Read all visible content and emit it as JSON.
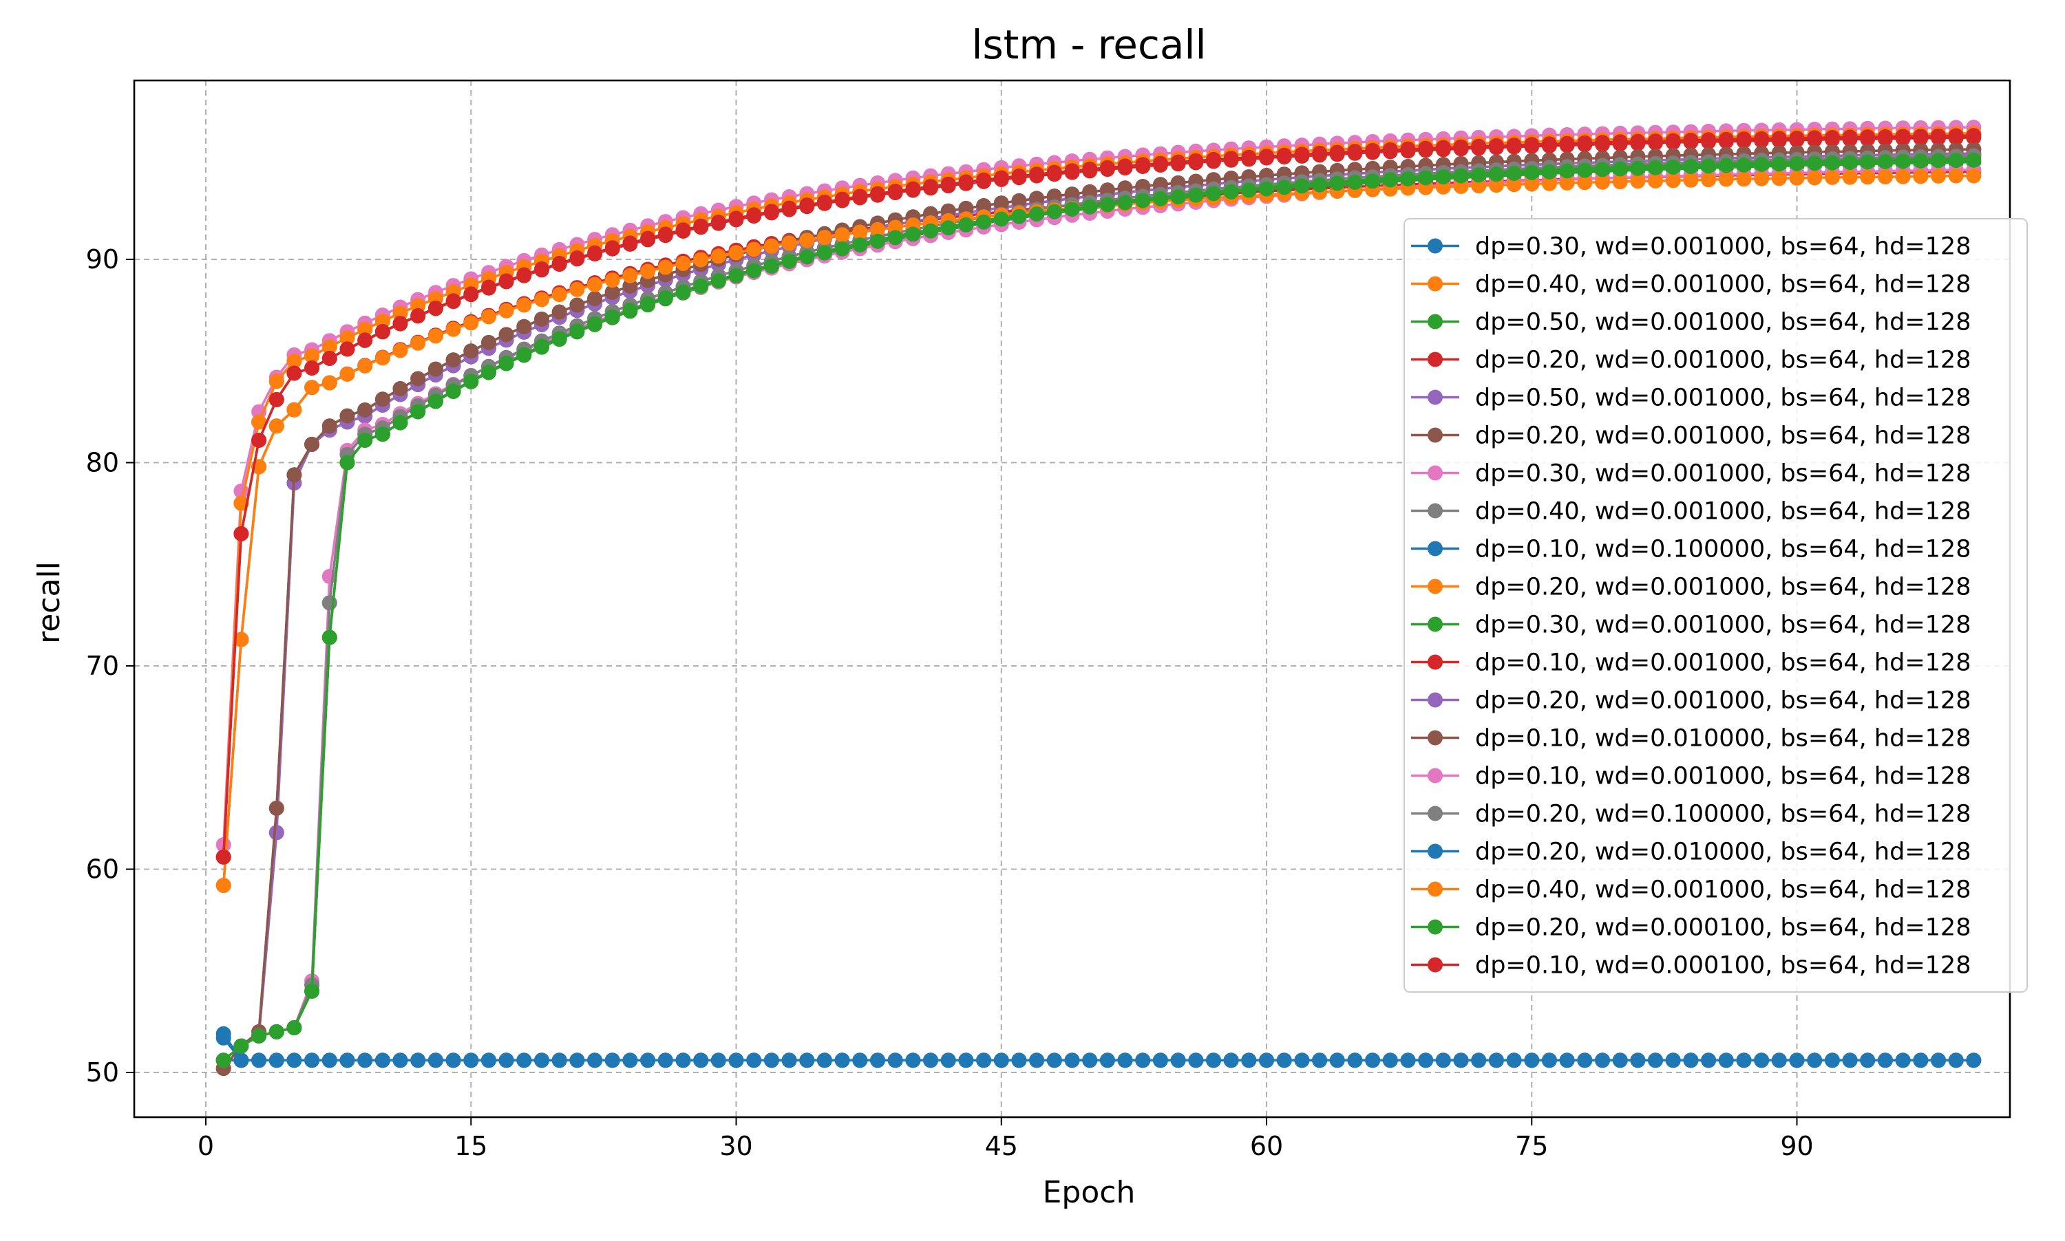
{
  "chart_data": {
    "type": "line",
    "title": "lstm - recall",
    "xlabel": "Epoch",
    "ylabel": "recall",
    "xlim": [
      -4.05,
      102.05
    ],
    "ylim": [
      47.8,
      98.8
    ],
    "xticks": [
      0,
      15,
      30,
      45,
      60,
      75,
      90
    ],
    "yticks": [
      50,
      60,
      70,
      80,
      90
    ],
    "grid": true,
    "grid_style": "dashed",
    "legend_position": "right",
    "marker": "circle",
    "colors": [
      "#1f77b4",
      "#ff7f0e",
      "#2ca02c",
      "#d62728",
      "#9467bd",
      "#8c564b",
      "#e377c2",
      "#7f7f7f"
    ],
    "series": [
      {
        "name": "dp=0.30, wd=0.001000, bs=64, hd=128",
        "color": "#1f77b4",
        "start": [
          50.6,
          50.6
        ],
        "plateau": 50.6
      },
      {
        "name": "dp=0.40, wd=0.001000, bs=64, hd=128",
        "color": "#ff7f0e",
        "start": [
          60.6,
          78.0,
          82.0,
          84.0,
          85.0
        ],
        "plateau": 96.5
      },
      {
        "name": "dp=0.50, wd=0.001000, bs=64, hd=128",
        "color": "#2ca02c",
        "start": [
          50.6,
          51.3,
          51.8,
          52.0,
          52.2,
          54.0,
          71.4,
          80.0,
          81.1
        ],
        "plateau": 95.2
      },
      {
        "name": "dp=0.20, wd=0.001000, bs=64, hd=128",
        "color": "#d62728",
        "start": [
          59.2,
          71.3,
          79.8,
          81.8,
          82.6,
          83.7
        ],
        "plateau": 94.6
      },
      {
        "name": "dp=0.50, wd=0.001000, bs=64, hd=128",
        "color": "#9467bd",
        "start": [
          50.6,
          51.3,
          51.8,
          61.8,
          79.0,
          80.9,
          81.6,
          82.0
        ],
        "plateau": 95.6
      },
      {
        "name": "dp=0.20, wd=0.001000, bs=64, hd=128",
        "color": "#8c564b",
        "start": [
          50.2,
          51.3,
          52.0,
          63.0,
          79.4,
          80.9,
          81.8,
          82.3
        ],
        "plateau": 95.8
      },
      {
        "name": "dp=0.30, wd=0.001000, bs=64, hd=128",
        "color": "#e377c2",
        "start": [
          61.2,
          78.6,
          82.5,
          84.2,
          85.3
        ],
        "plateau": 96.8
      },
      {
        "name": "dp=0.40, wd=0.001000, bs=64, hd=128",
        "color": "#7f7f7f",
        "start": [
          50.6,
          51.3,
          51.8,
          52.0,
          52.2,
          54.3,
          73.1,
          80.4,
          81.4
        ],
        "plateau": 95.5
      },
      {
        "name": "dp=0.10, wd=0.100000, bs=64, hd=128",
        "color": "#1f77b4",
        "start": [
          51.9,
          50.6
        ],
        "plateau": 50.6
      },
      {
        "name": "dp=0.20, wd=0.001000, bs=64, hd=128",
        "color": "#ff7f0e",
        "start": [
          60.6,
          78.0,
          82.0,
          84.0,
          85.0
        ],
        "plateau": 96.5
      },
      {
        "name": "dp=0.30, wd=0.001000, bs=64, hd=128",
        "color": "#2ca02c",
        "start": [
          50.6,
          51.3,
          51.8,
          52.0,
          52.2,
          54.0,
          71.4,
          80.0,
          81.1
        ],
        "plateau": 95.4
      },
      {
        "name": "dp=0.10, wd=0.001000, bs=64, hd=128",
        "color": "#d62728",
        "start": [
          60.6,
          76.5,
          81.1,
          83.1,
          84.4
        ],
        "plateau": 96.3
      },
      {
        "name": "dp=0.20, wd=0.001000, bs=64, hd=128",
        "color": "#9467bd",
        "start": [
          50.6,
          51.3,
          51.8,
          61.8,
          79.0,
          80.9,
          81.6,
          82.0
        ],
        "plateau": 95.6
      },
      {
        "name": "dp=0.10, wd=0.010000, bs=64, hd=128",
        "color": "#8c564b",
        "start": [
          50.2,
          51.3,
          52.0,
          63.0,
          79.4,
          80.9,
          81.8,
          82.3
        ],
        "plateau": 95.8
      },
      {
        "name": "dp=0.10, wd=0.001000, bs=64, hd=128",
        "color": "#e377c2",
        "start": [
          50.6,
          51.3,
          51.8,
          52.0,
          52.2,
          54.5,
          74.4,
          80.6,
          81.6
        ],
        "plateau": 94.8
      },
      {
        "name": "dp=0.20, wd=0.100000, bs=64, hd=128",
        "color": "#7f7f7f",
        "start": [
          50.6,
          51.3,
          51.8,
          52.0,
          52.2,
          54.3,
          73.1,
          80.4,
          81.4
        ],
        "plateau": 95.5
      },
      {
        "name": "dp=0.20, wd=0.010000, bs=64, hd=128",
        "color": "#1f77b4",
        "start": [
          51.7,
          50.6
        ],
        "plateau": 50.6
      },
      {
        "name": "dp=0.40, wd=0.001000, bs=64, hd=128",
        "color": "#ff7f0e",
        "start": [
          59.2,
          71.3,
          79.8,
          81.8,
          82.6,
          83.7
        ],
        "plateau": 94.4
      },
      {
        "name": "dp=0.20, wd=0.000100, bs=64, hd=128",
        "color": "#2ca02c",
        "start": [
          50.6,
          51.3,
          51.8,
          52.0,
          52.2,
          54.0,
          71.4,
          80.0,
          81.1
        ],
        "plateau": 95.3
      },
      {
        "name": "dp=0.10, wd=0.000100, bs=64, hd=128",
        "color": "#d62728",
        "start": [
          60.6,
          76.5,
          81.1,
          83.1,
          84.4
        ],
        "plateau": 96.4
      }
    ],
    "x_range": [
      1,
      100
    ]
  }
}
